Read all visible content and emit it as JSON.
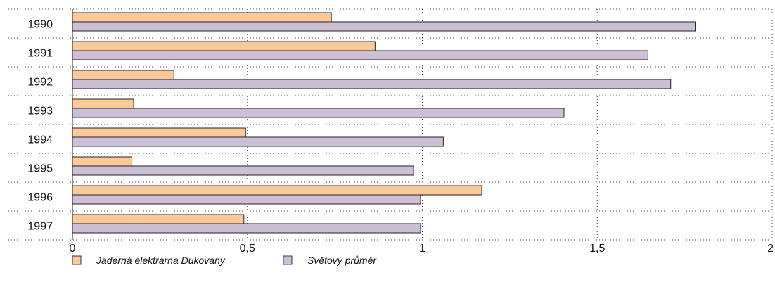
{
  "chart_data": {
    "type": "bar",
    "orientation": "horizontal",
    "categories": [
      "1990",
      "1991",
      "1992",
      "1993",
      "1994",
      "1995",
      "1996",
      "1997"
    ],
    "series": [
      {
        "name": "Jaderná elektrárna Dukovany",
        "color": "#fcc99b",
        "values": [
          0.74,
          0.865,
          0.29,
          0.175,
          0.495,
          0.17,
          1.17,
          0.49
        ]
      },
      {
        "name": "Světový průměr",
        "color": "#cdc0d6",
        "values": [
          1.78,
          1.645,
          1.71,
          1.405,
          1.06,
          0.975,
          0.995,
          0.995
        ]
      }
    ],
    "xlim": [
      0,
      2
    ],
    "x_ticks": [
      "0",
      "0,5",
      "1",
      "1,5",
      "2"
    ],
    "x_tick_values": [
      0,
      0.5,
      1,
      1.5,
      2
    ],
    "grid": "dotted",
    "legend": "bottom-left",
    "title": "",
    "xlabel": "",
    "ylabel": ""
  }
}
